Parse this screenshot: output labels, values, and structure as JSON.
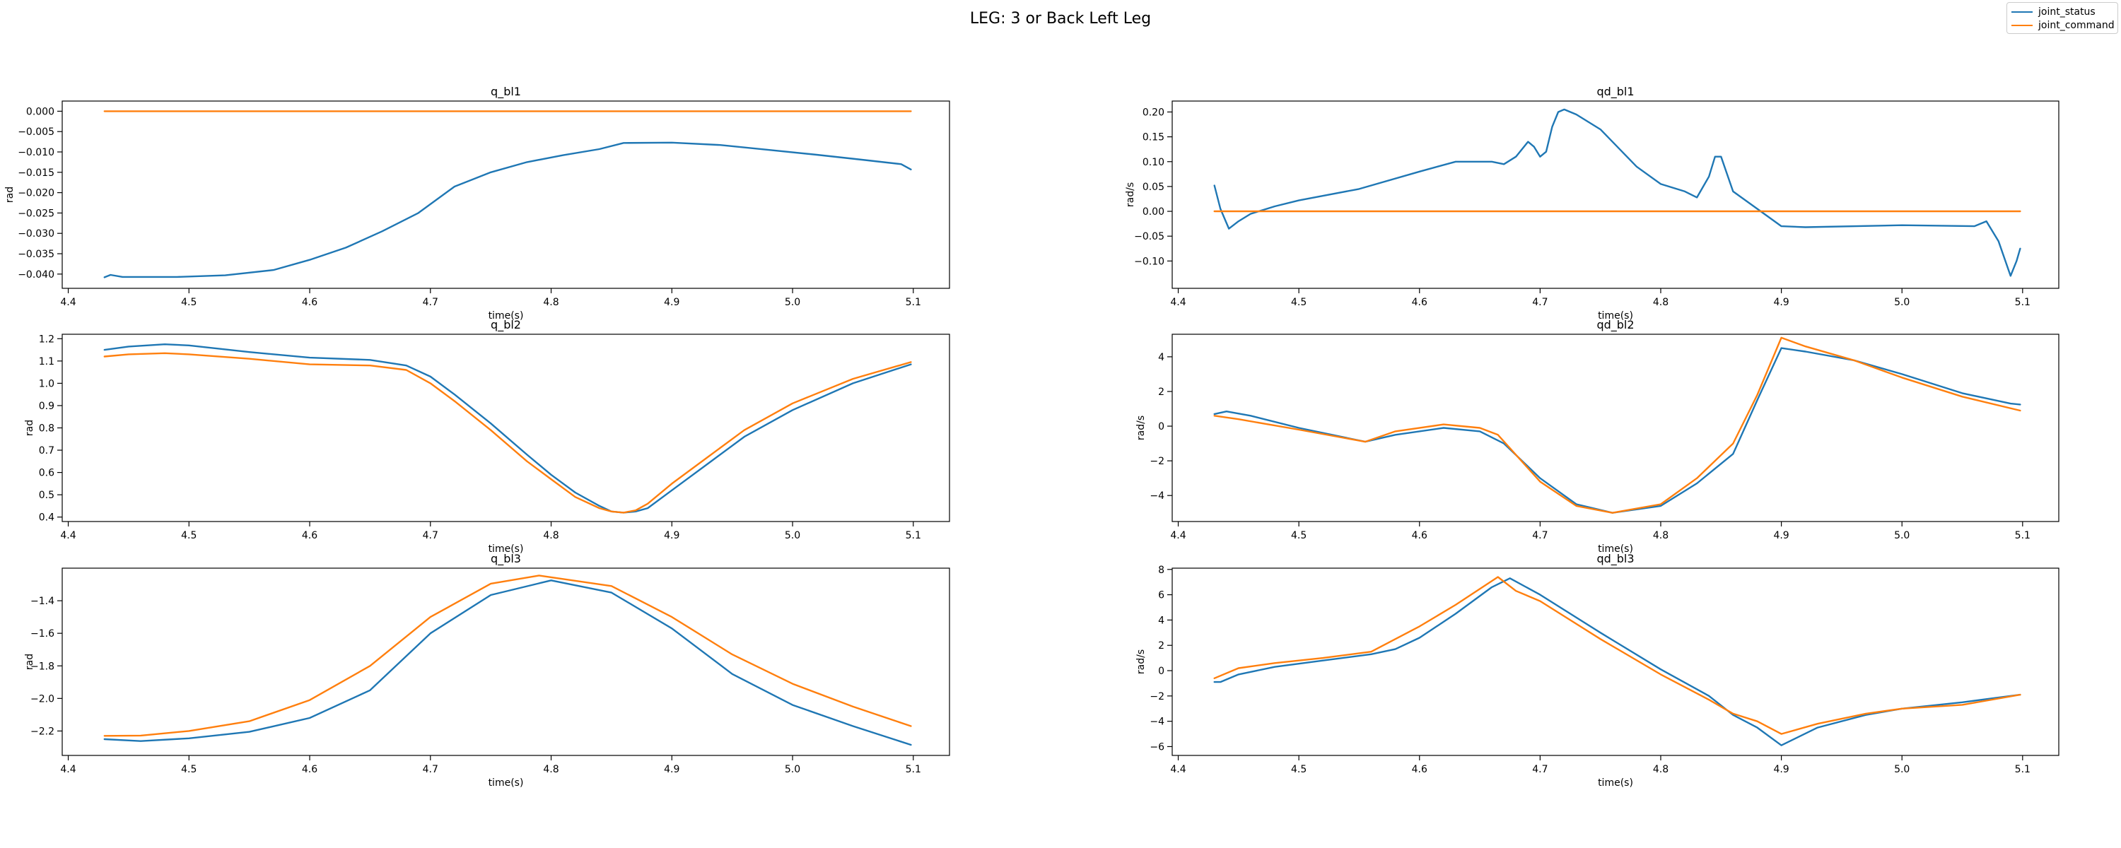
{
  "figure": {
    "suptitle": "LEG: 3 or Back Left Leg",
    "legend": [
      {
        "label": "joint_status",
        "color": "#1f77b4"
      },
      {
        "label": "joint_command",
        "color": "#ff7f0e"
      }
    ]
  },
  "chart_data": [
    {
      "type": "line",
      "title": "q_bl1",
      "xlabel": "time(s)",
      "ylabel": "rad",
      "xlim": [
        4.395,
        5.13
      ],
      "ylim": [
        -0.0435,
        0.0025
      ],
      "xticks": [
        4.4,
        4.5,
        4.6,
        4.7,
        4.8,
        4.9,
        5.0,
        5.1
      ],
      "yticks": [
        0.0,
        -0.005,
        -0.01,
        -0.015,
        -0.02,
        -0.025,
        -0.03,
        -0.035,
        -0.04
      ],
      "ytick_labels": [
        "0.000",
        "−0.005",
        "−0.010",
        "−0.015",
        "−0.020",
        "−0.025",
        "−0.030",
        "−0.035",
        "−0.040"
      ],
      "series": [
        {
          "name": "joint_status",
          "color": "#1f77b4",
          "x": [
            4.43,
            4.435,
            4.445,
            4.49,
            4.53,
            4.57,
            4.6,
            4.63,
            4.66,
            4.69,
            4.72,
            4.75,
            4.78,
            4.81,
            4.84,
            4.86,
            4.9,
            4.94,
            4.98,
            5.02,
            5.06,
            5.09,
            5.098
          ],
          "y": [
            -0.0408,
            -0.0402,
            -0.0407,
            -0.0407,
            -0.0403,
            -0.039,
            -0.0365,
            -0.0335,
            -0.0295,
            -0.025,
            -0.0185,
            -0.015,
            -0.0125,
            -0.0108,
            -0.0093,
            -0.0078,
            -0.0077,
            -0.0083,
            -0.0095,
            -0.0107,
            -0.012,
            -0.013,
            -0.0143
          ]
        },
        {
          "name": "joint_command",
          "color": "#ff7f0e",
          "x": [
            4.43,
            5.098
          ],
          "y": [
            0.0,
            0.0
          ]
        }
      ]
    },
    {
      "type": "line",
      "title": "qd_bl1",
      "xlabel": "time(s)",
      "ylabel": "rad/s",
      "xlim": [
        4.395,
        5.13
      ],
      "ylim": [
        -0.155,
        0.222
      ],
      "xticks": [
        4.4,
        4.5,
        4.6,
        4.7,
        4.8,
        4.9,
        5.0,
        5.1
      ],
      "yticks": [
        0.2,
        0.15,
        0.1,
        0.05,
        0.0,
        -0.05,
        -0.1
      ],
      "ytick_labels": [
        "0.20",
        "0.15",
        "0.10",
        "0.05",
        "0.00",
        "−0.05",
        "−0.10"
      ],
      "series": [
        {
          "name": "joint_status",
          "color": "#1f77b4",
          "x": [
            4.43,
            4.435,
            4.442,
            4.45,
            4.46,
            4.48,
            4.5,
            4.55,
            4.6,
            4.63,
            4.66,
            4.67,
            4.68,
            4.69,
            4.695,
            4.7,
            4.705,
            4.71,
            4.715,
            4.72,
            4.73,
            4.75,
            4.78,
            4.8,
            4.82,
            4.83,
            4.84,
            4.845,
            4.85,
            4.86,
            4.88,
            4.9,
            4.92,
            5.0,
            5.06,
            5.07,
            5.08,
            5.09,
            5.095,
            5.098
          ],
          "y": [
            0.052,
            0.005,
            -0.035,
            -0.02,
            -0.005,
            0.01,
            0.022,
            0.045,
            0.08,
            0.1,
            0.1,
            0.095,
            0.11,
            0.14,
            0.13,
            0.11,
            0.12,
            0.17,
            0.2,
            0.205,
            0.195,
            0.165,
            0.09,
            0.055,
            0.04,
            0.028,
            0.07,
            0.11,
            0.11,
            0.04,
            0.005,
            -0.03,
            -0.032,
            -0.028,
            -0.03,
            -0.02,
            -0.06,
            -0.13,
            -0.1,
            -0.075
          ]
        },
        {
          "name": "joint_command",
          "color": "#ff7f0e",
          "x": [
            4.43,
            5.098
          ],
          "y": [
            0.0,
            0.0
          ]
        }
      ]
    },
    {
      "type": "line",
      "title": "q_bl2",
      "xlabel": "time(s)",
      "ylabel": "rad",
      "xlim": [
        4.395,
        5.13
      ],
      "ylim": [
        0.38,
        1.22
      ],
      "xticks": [
        4.4,
        4.5,
        4.6,
        4.7,
        4.8,
        4.9,
        5.0,
        5.1
      ],
      "yticks": [
        1.2,
        1.1,
        1.0,
        0.9,
        0.8,
        0.7,
        0.6,
        0.5,
        0.4
      ],
      "ytick_labels": [
        "1.2",
        "1.1",
        "1.0",
        "0.9",
        "0.8",
        "0.7",
        "0.6",
        "0.5",
        "0.4"
      ],
      "series": [
        {
          "name": "joint_status",
          "color": "#1f77b4",
          "x": [
            4.43,
            4.45,
            4.48,
            4.5,
            4.55,
            4.6,
            4.65,
            4.68,
            4.7,
            4.72,
            4.75,
            4.78,
            4.8,
            4.82,
            4.84,
            4.85,
            4.86,
            4.87,
            4.88,
            4.9,
            4.93,
            4.96,
            5.0,
            5.05,
            5.098
          ],
          "y": [
            1.15,
            1.165,
            1.175,
            1.17,
            1.14,
            1.115,
            1.105,
            1.08,
            1.03,
            0.95,
            0.82,
            0.68,
            0.59,
            0.51,
            0.45,
            0.425,
            0.42,
            0.425,
            0.44,
            0.52,
            0.64,
            0.76,
            0.88,
            1.0,
            1.085
          ]
        },
        {
          "name": "joint_command",
          "color": "#ff7f0e",
          "x": [
            4.43,
            4.45,
            4.48,
            4.5,
            4.55,
            4.6,
            4.65,
            4.68,
            4.7,
            4.72,
            4.75,
            4.78,
            4.8,
            4.82,
            4.84,
            4.85,
            4.86,
            4.87,
            4.88,
            4.9,
            4.93,
            4.96,
            5.0,
            5.05,
            5.098
          ],
          "y": [
            1.12,
            1.13,
            1.135,
            1.13,
            1.11,
            1.085,
            1.08,
            1.06,
            1.0,
            0.92,
            0.79,
            0.65,
            0.57,
            0.49,
            0.44,
            0.425,
            0.42,
            0.43,
            0.46,
            0.55,
            0.67,
            0.79,
            0.91,
            1.02,
            1.095
          ]
        }
      ]
    },
    {
      "type": "line",
      "title": "qd_bl2",
      "xlabel": "time(s)",
      "ylabel": "rad/s",
      "xlim": [
        4.395,
        5.13
      ],
      "ylim": [
        -5.5,
        5.3
      ],
      "xticks": [
        4.4,
        4.5,
        4.6,
        4.7,
        4.8,
        4.9,
        5.0,
        5.1
      ],
      "yticks": [
        4,
        2,
        0,
        -2,
        -4
      ],
      "ytick_labels": [
        "4",
        "2",
        "0",
        "−2",
        "−4"
      ],
      "series": [
        {
          "name": "joint_status",
          "color": "#1f77b4",
          "x": [
            4.43,
            4.44,
            4.46,
            4.5,
            4.555,
            4.58,
            4.62,
            4.65,
            4.67,
            4.7,
            4.73,
            4.76,
            4.8,
            4.83,
            4.86,
            4.88,
            4.9,
            4.92,
            4.96,
            5.0,
            5.05,
            5.09,
            5.098
          ],
          "y": [
            0.7,
            0.85,
            0.6,
            -0.1,
            -0.9,
            -0.5,
            -0.1,
            -0.3,
            -1.0,
            -3.0,
            -4.5,
            -5.0,
            -4.6,
            -3.3,
            -1.6,
            1.5,
            4.5,
            4.3,
            3.8,
            3.0,
            1.9,
            1.3,
            1.25
          ]
        },
        {
          "name": "joint_command",
          "color": "#ff7f0e",
          "x": [
            4.43,
            4.45,
            4.5,
            4.555,
            4.58,
            4.62,
            4.65,
            4.665,
            4.7,
            4.73,
            4.76,
            4.8,
            4.83,
            4.86,
            4.88,
            4.9,
            4.92,
            4.96,
            5.0,
            5.05,
            5.098
          ],
          "y": [
            0.6,
            0.4,
            -0.2,
            -0.9,
            -0.3,
            0.1,
            -0.1,
            -0.5,
            -3.2,
            -4.6,
            -5.0,
            -4.5,
            -3.0,
            -1.0,
            1.8,
            5.1,
            4.6,
            3.8,
            2.8,
            1.7,
            0.9
          ]
        }
      ]
    },
    {
      "type": "line",
      "title": "q_bl3",
      "xlabel": "time(s)",
      "ylabel": "rad",
      "xlim": [
        4.395,
        5.13
      ],
      "ylim": [
        -2.35,
        -1.2
      ],
      "xticks": [
        4.4,
        4.5,
        4.6,
        4.7,
        4.8,
        4.9,
        5.0,
        5.1
      ],
      "yticks": [
        -1.4,
        -1.6,
        -1.8,
        -2.0,
        -2.2
      ],
      "ytick_labels": [
        "−1.4",
        "−1.6",
        "−1.8",
        "−2.0",
        "−2.2"
      ],
      "series": [
        {
          "name": "joint_status",
          "color": "#1f77b4",
          "x": [
            4.43,
            4.46,
            4.5,
            4.55,
            4.6,
            4.65,
            4.7,
            4.75,
            4.8,
            4.85,
            4.9,
            4.95,
            5.0,
            5.05,
            5.098
          ],
          "y": [
            -2.25,
            -2.262,
            -2.245,
            -2.205,
            -2.12,
            -1.95,
            -1.6,
            -1.365,
            -1.275,
            -1.35,
            -1.57,
            -1.85,
            -2.04,
            -2.17,
            -2.285
          ]
        },
        {
          "name": "joint_command",
          "color": "#ff7f0e",
          "x": [
            4.43,
            4.46,
            4.5,
            4.55,
            4.6,
            4.65,
            4.7,
            4.75,
            4.79,
            4.85,
            4.9,
            4.95,
            5.0,
            5.05,
            5.098
          ],
          "y": [
            -2.23,
            -2.228,
            -2.2,
            -2.14,
            -2.01,
            -1.8,
            -1.5,
            -1.295,
            -1.245,
            -1.31,
            -1.5,
            -1.73,
            -1.91,
            -2.05,
            -2.17
          ]
        }
      ]
    },
    {
      "type": "line",
      "title": "qd_bl3",
      "xlabel": "time(s)",
      "ylabel": "rad/s",
      "xlim": [
        4.395,
        5.13
      ],
      "ylim": [
        -6.7,
        8.1
      ],
      "xticks": [
        4.4,
        4.5,
        4.6,
        4.7,
        4.8,
        4.9,
        5.0,
        5.1
      ],
      "yticks": [
        8,
        6,
        4,
        2,
        0,
        -2,
        -4,
        -6
      ],
      "ytick_labels": [
        "8",
        "6",
        "4",
        "2",
        "0",
        "−2",
        "−4",
        "−6"
      ],
      "series": [
        {
          "name": "joint_status",
          "color": "#1f77b4",
          "x": [
            4.43,
            4.435,
            4.45,
            4.48,
            4.52,
            4.56,
            4.58,
            4.6,
            4.63,
            4.66,
            4.675,
            4.7,
            4.75,
            4.8,
            4.84,
            4.86,
            4.88,
            4.9,
            4.93,
            4.97,
            5.0,
            5.05,
            5.098
          ],
          "y": [
            -0.9,
            -0.9,
            -0.3,
            0.3,
            0.8,
            1.3,
            1.7,
            2.6,
            4.5,
            6.6,
            7.3,
            6.0,
            3.0,
            0.1,
            -2.0,
            -3.5,
            -4.5,
            -5.9,
            -4.5,
            -3.5,
            -3.0,
            -2.5,
            -1.9
          ]
        },
        {
          "name": "joint_command",
          "color": "#ff7f0e",
          "x": [
            4.43,
            4.45,
            4.48,
            4.52,
            4.56,
            4.6,
            4.63,
            4.665,
            4.68,
            4.7,
            4.75,
            4.8,
            4.84,
            4.86,
            4.88,
            4.9,
            4.93,
            4.97,
            5.0,
            5.05,
            5.098
          ],
          "y": [
            -0.6,
            0.2,
            0.6,
            1.0,
            1.5,
            3.5,
            5.2,
            7.4,
            6.3,
            5.5,
            2.5,
            -0.3,
            -2.3,
            -3.4,
            -4.0,
            -5.0,
            -4.2,
            -3.4,
            -3.0,
            -2.7,
            -1.9
          ]
        }
      ]
    }
  ]
}
